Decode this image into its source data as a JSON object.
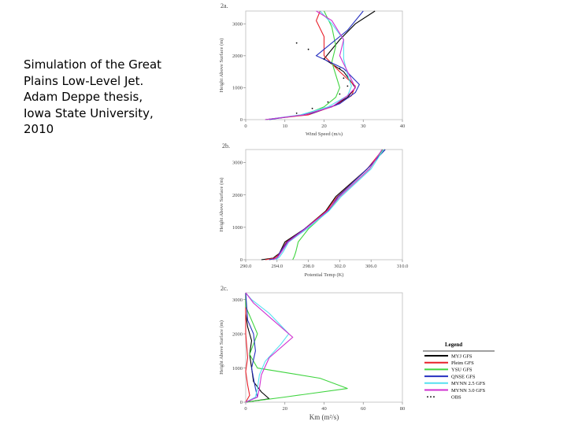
{
  "caption": {
    "lines": [
      "Simulation of the Great",
      "Plains Low-Level Jet.",
      "Adam Deppe thesis,",
      "Iowa State University,",
      "2010"
    ]
  },
  "colors": {
    "MYJ GFS": "#000000",
    "Pleim GFS": "#e8202a",
    "YSU GFS": "#3fd43f",
    "QNSE GFS": "#2630c0",
    "MYNN 2.5 GFS": "#55e0f0",
    "MYNN 3.0 GFS": "#d030d0",
    "OBS": "#000000"
  },
  "legend": {
    "title": "Legend",
    "entries": [
      "MYJ GFS",
      "Pleim GFS",
      "YSU GFS",
      "QNSE GFS",
      "MYNN 2.5 GFS",
      "MYNN 3.0 GFS",
      "OBS"
    ]
  },
  "chart_data": [
    {
      "type": "line",
      "panel_label": "2a.",
      "xlabel": "Wind Speed (m/s)",
      "ylabel": "Height Above Surface (m)",
      "xlim": [
        0,
        40
      ],
      "ylim": [
        0,
        3400
      ],
      "xticks": [
        "0",
        "10",
        "20",
        "30",
        "40"
      ],
      "yticks": [
        "0",
        "1000",
        "2000",
        "3000"
      ],
      "series": [
        {
          "name": "MYJ GFS",
          "points": [
            [
              5,
              0
            ],
            [
              15,
              150
            ],
            [
              22,
              400
            ],
            [
              26,
              700
            ],
            [
              28,
              1000
            ],
            [
              25,
              1500
            ],
            [
              20,
              1900
            ],
            [
              24,
              2500
            ],
            [
              28,
              3000
            ],
            [
              33,
              3400
            ]
          ]
        },
        {
          "name": "Pleim GFS",
          "points": [
            [
              5,
              0
            ],
            [
              16,
              150
            ],
            [
              23,
              450
            ],
            [
              27,
              750
            ],
            [
              28,
              1050
            ],
            [
              24,
              1500
            ],
            [
              20,
              2000
            ],
            [
              20,
              2600
            ],
            [
              18,
              3100
            ],
            [
              19,
              3400
            ]
          ]
        },
        {
          "name": "YSU GFS",
          "points": [
            [
              5,
              0
            ],
            [
              15,
              150
            ],
            [
              20,
              400
            ],
            [
              23,
              700
            ],
            [
              24,
              1000
            ],
            [
              23,
              1400
            ],
            [
              22,
              1800
            ],
            [
              23,
              2300
            ],
            [
              22,
              2900
            ],
            [
              20,
              3400
            ]
          ]
        },
        {
          "name": "QNSE GFS",
          "points": [
            [
              6,
              0
            ],
            [
              17,
              200
            ],
            [
              24,
              500
            ],
            [
              28,
              850
            ],
            [
              29,
              1100
            ],
            [
              25,
              1600
            ],
            [
              18,
              2000
            ],
            [
              22,
              2400
            ],
            [
              26,
              2800
            ],
            [
              30,
              3400
            ]
          ]
        },
        {
          "name": "MYNN 2.5 GFS",
          "points": [
            [
              5,
              0
            ],
            [
              14,
              150
            ],
            [
              21,
              400
            ],
            [
              26,
              750
            ],
            [
              27,
              1050
            ],
            [
              26,
              1400
            ],
            [
              25,
              1900
            ],
            [
              25,
              2500
            ],
            [
              22,
              3000
            ],
            [
              19,
              3400
            ]
          ]
        },
        {
          "name": "MYNN 3.0 GFS",
          "points": [
            [
              5,
              0
            ],
            [
              15,
              150
            ],
            [
              22,
              400
            ],
            [
              26,
              750
            ],
            [
              28,
              1000
            ],
            [
              26,
              1500
            ],
            [
              24,
              2000
            ],
            [
              25,
              2500
            ],
            [
              22,
              3100
            ],
            [
              18,
              3400
            ]
          ]
        },
        {
          "name": "OBS",
          "points": [
            [
              13,
              200
            ],
            [
              17,
              350
            ],
            [
              21,
              550
            ],
            [
              24,
              800
            ],
            [
              26,
              1050
            ],
            [
              25,
              1300
            ],
            [
              24,
              1600
            ],
            [
              20,
              1900
            ],
            [
              16,
              2200
            ],
            [
              13,
              2400
            ]
          ]
        }
      ]
    },
    {
      "type": "line",
      "panel_label": "2b.",
      "xlabel": "Potential Temp (K)",
      "ylabel": "Height Above Surface (m)",
      "xlim": [
        290,
        310
      ],
      "ylim": [
        0,
        3400
      ],
      "xticks": [
        "290.0",
        "294.0",
        "298.0",
        "302.0",
        "306.0",
        "310.0"
      ],
      "yticks": [
        "0",
        "1000",
        "2000",
        "3000"
      ],
      "series": [
        {
          "name": "MYJ GFS",
          "points": [
            [
              292,
              0
            ],
            [
              293.5,
              50
            ],
            [
              294.3,
              200
            ],
            [
              295,
              550
            ],
            [
              297.5,
              950
            ],
            [
              300.2,
              1500
            ],
            [
              301.5,
              1950
            ],
            [
              305.5,
              2800
            ],
            [
              307.8,
              3400
            ]
          ]
        },
        {
          "name": "Pleim GFS",
          "points": [
            [
              292.5,
              0
            ],
            [
              293.8,
              60
            ],
            [
              294.3,
              200
            ],
            [
              295.2,
              550
            ],
            [
              297.5,
              950
            ],
            [
              300.3,
              1500
            ],
            [
              301.5,
              1900
            ],
            [
              305.5,
              2800
            ],
            [
              307.5,
              3400
            ]
          ]
        },
        {
          "name": "YSU GFS",
          "points": [
            [
              296,
              0
            ],
            [
              296.2,
              100
            ],
            [
              296.4,
              250
            ],
            [
              296.7,
              550
            ],
            [
              298,
              950
            ],
            [
              300.5,
              1500
            ],
            [
              302,
              1950
            ],
            [
              305.8,
              2800
            ],
            [
              307.5,
              3400
            ]
          ]
        },
        {
          "name": "QNSE GFS",
          "points": [
            [
              293,
              0
            ],
            [
              294,
              50
            ],
            [
              294.3,
              200
            ],
            [
              295.3,
              550
            ],
            [
              297.5,
              950
            ],
            [
              300.5,
              1500
            ],
            [
              301.8,
              1950
            ],
            [
              305.5,
              2800
            ],
            [
              307.8,
              3400
            ]
          ]
        },
        {
          "name": "MYNN 2.5 GFS",
          "points": [
            [
              293.8,
              0
            ],
            [
              294.3,
              80
            ],
            [
              294.8,
              250
            ],
            [
              295.5,
              550
            ],
            [
              297.8,
              950
            ],
            [
              300.6,
              1500
            ],
            [
              302.2,
              1950
            ],
            [
              306,
              2800
            ],
            [
              307.6,
              3400
            ]
          ]
        },
        {
          "name": "MYNN 3.0 GFS",
          "points": [
            [
              293.5,
              0
            ],
            [
              294.1,
              80
            ],
            [
              294.6,
              250
            ],
            [
              295.4,
              550
            ],
            [
              297.6,
              950
            ],
            [
              300.4,
              1500
            ],
            [
              302,
              1950
            ],
            [
              305.8,
              2800
            ],
            [
              307.4,
              3400
            ]
          ]
        }
      ]
    },
    {
      "type": "line",
      "panel_label": "2c.",
      "xlabel": "Km (m²/s)",
      "ylabel": "Height Above Surface (m)",
      "xlim": [
        0,
        80
      ],
      "ylim": [
        0,
        3200
      ],
      "xticks": [
        "0",
        "20",
        "40",
        "60",
        "80"
      ],
      "yticks": [
        "0",
        "1000",
        "2000",
        "3000"
      ],
      "series": [
        {
          "name": "MYJ GFS",
          "points": [
            [
              0,
              0
            ],
            [
              12,
              100
            ],
            [
              8,
              300
            ],
            [
              4,
              600
            ],
            [
              3,
              1000
            ],
            [
              2,
              1400
            ],
            [
              3,
              1800
            ],
            [
              1,
              2200
            ],
            [
              0,
              2600
            ],
            [
              0,
              3200
            ]
          ]
        },
        {
          "name": "Pleim GFS",
          "points": [
            [
              0,
              0
            ],
            [
              2,
              200
            ],
            [
              1,
              500
            ],
            [
              0,
              900
            ],
            [
              1,
              1300
            ],
            [
              0,
              2000
            ],
            [
              0,
              3200
            ]
          ]
        },
        {
          "name": "YSU GFS",
          "points": [
            [
              0,
              0
            ],
            [
              20,
              150
            ],
            [
              52,
              400
            ],
            [
              38,
              700
            ],
            [
              6,
              1000
            ],
            [
              2,
              1400
            ],
            [
              6,
              2000
            ],
            [
              3,
              2400
            ],
            [
              0,
              2800
            ],
            [
              0,
              3200
            ]
          ]
        },
        {
          "name": "QNSE GFS",
          "points": [
            [
              0,
              0
            ],
            [
              6,
              150
            ],
            [
              5,
              400
            ],
            [
              4,
              700
            ],
            [
              3,
              1000
            ],
            [
              5,
              1500
            ],
            [
              4,
              2000
            ],
            [
              1,
              2400
            ],
            [
              0,
              3200
            ]
          ]
        },
        {
          "name": "MYNN 2.5 GFS",
          "points": [
            [
              0,
              0
            ],
            [
              5,
              150
            ],
            [
              6,
              400
            ],
            [
              7,
              800
            ],
            [
              10,
              1200
            ],
            [
              18,
              1700
            ],
            [
              22,
              2000
            ],
            [
              12,
              2600
            ],
            [
              3,
              3000
            ],
            [
              0,
              3200
            ]
          ]
        },
        {
          "name": "MYNN 3.0 GFS",
          "points": [
            [
              0,
              0
            ],
            [
              6,
              150
            ],
            [
              7,
              400
            ],
            [
              8,
              800
            ],
            [
              12,
              1300
            ],
            [
              24,
              1900
            ],
            [
              14,
              2400
            ],
            [
              4,
              2900
            ],
            [
              0,
              3200
            ]
          ]
        }
      ]
    }
  ]
}
